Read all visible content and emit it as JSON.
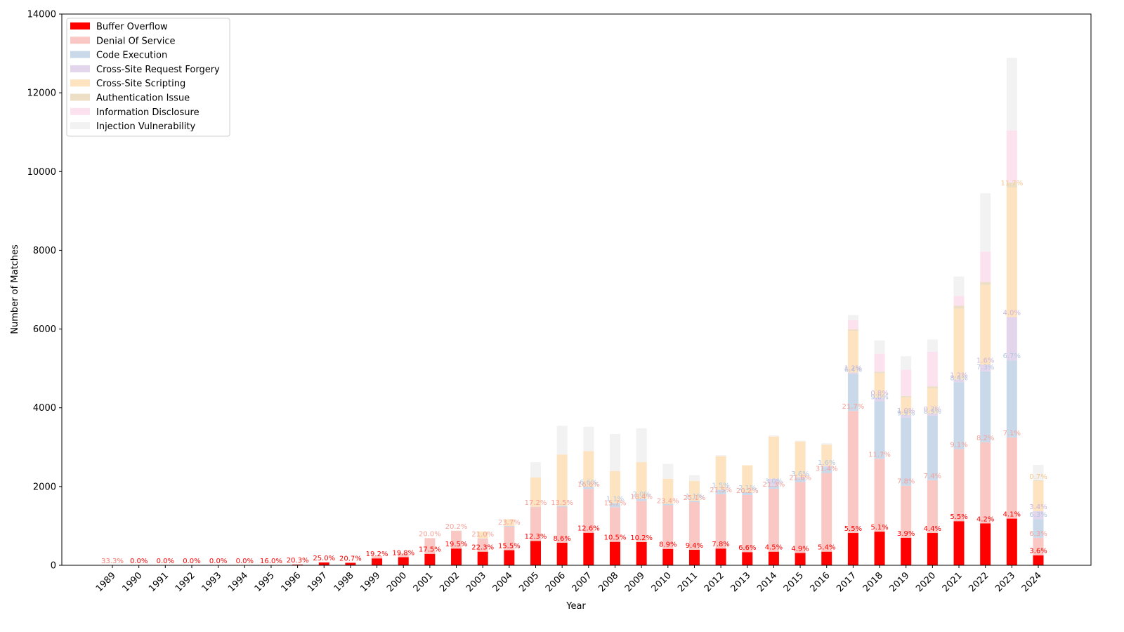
{
  "chart_data": {
    "type": "bar",
    "stacked": true,
    "title": "",
    "xlabel": "Year",
    "ylabel": "Number of Matches",
    "ylim": [
      0,
      14000
    ],
    "yticks": [
      0,
      2000,
      4000,
      6000,
      8000,
      10000,
      12000,
      14000
    ],
    "legend_position": "upper-left",
    "categories": [
      "1989",
      "1990",
      "1991",
      "1992",
      "1993",
      "1994",
      "1995",
      "1996",
      "1997",
      "1998",
      "1999",
      "2000",
      "2001",
      "2002",
      "2003",
      "2004",
      "2005",
      "2006",
      "2007",
      "2008",
      "2009",
      "2010",
      "2011",
      "2012",
      "2013",
      "2014",
      "2015",
      "2016",
      "2017",
      "2018",
      "2019",
      "2020",
      "2021",
      "2022",
      "2023",
      "2024"
    ],
    "series": [
      {
        "name": "Buffer Overflow",
        "color": "#ff0000",
        "label_color": "#ff0000",
        "values": [
          1,
          0,
          0,
          0,
          0,
          0,
          3,
          21,
          75,
          62,
          175,
          205,
          290,
          425,
          345,
          385,
          620,
          575,
          825,
          595,
          590,
          415,
          395,
          425,
          335,
          345,
          315,
          345,
          820,
          855,
          700,
          820,
          1120,
          1065,
          1185,
          255
        ]
      },
      {
        "name": "Denial Of Service",
        "color": "#f9c8c4",
        "label_color": "#f4a29a",
        "values": [
          1,
          0,
          0,
          0,
          0,
          0,
          2,
          5,
          5,
          10,
          55,
          100,
          400,
          450,
          330,
          595,
          860,
          905,
          1115,
          880,
          1045,
          1110,
          1210,
          1380,
          1450,
          1600,
          1800,
          2000,
          3100,
          1850,
          1320,
          1340,
          1830,
          2060,
          2060,
          445
        ]
      },
      {
        "name": "Code Execution",
        "color": "#c9d9e9",
        "label_color": "#b3c8e0",
        "values": [
          0,
          0,
          0,
          0,
          0,
          0,
          0,
          0,
          0,
          0,
          0,
          0,
          0,
          0,
          5,
          20,
          5,
          30,
          55,
          105,
          55,
          35,
          35,
          115,
          70,
          75,
          100,
          150,
          940,
          1460,
          1730,
          1640,
          1700,
          1800,
          1960,
          475
        ]
      },
      {
        "name": "Cross-Site Request Forgery",
        "color": "#e3d5eb",
        "label_color": "#ccb5dc",
        "values": [
          0,
          0,
          0,
          0,
          0,
          0,
          0,
          0,
          0,
          0,
          0,
          0,
          0,
          0,
          0,
          0,
          0,
          0,
          0,
          0,
          0,
          0,
          0,
          0,
          0,
          180,
          30,
          30,
          35,
          100,
          70,
          55,
          70,
          170,
          1100,
          200
        ]
      },
      {
        "name": "Cross-Site Scripting",
        "color": "#fde3c0",
        "label_color": "#f5c68e",
        "values": [
          0,
          0,
          0,
          0,
          0,
          0,
          0,
          0,
          0,
          0,
          0,
          0,
          0,
          0,
          180,
          170,
          745,
          1305,
          905,
          815,
          930,
          635,
          505,
          850,
          685,
          1070,
          900,
          540,
          1060,
          610,
          440,
          640,
          1800,
          2030,
          3290,
          765
        ]
      },
      {
        "name": "Authentication Issue",
        "color": "#ecdfc6",
        "label_color": "#ddc8a2",
        "values": [
          0,
          0,
          0,
          0,
          0,
          0,
          0,
          0,
          0,
          0,
          0,
          0,
          0,
          5,
          0,
          0,
          0,
          0,
          0,
          0,
          0,
          0,
          0,
          0,
          0,
          0,
          0,
          0,
          40,
          40,
          40,
          50,
          70,
          70,
          130,
          20
        ]
      },
      {
        "name": "Information Disclosure",
        "color": "#fce2ef",
        "label_color": "#f7bfd9",
        "values": [
          0,
          0,
          0,
          0,
          0,
          0,
          0,
          0,
          0,
          0,
          0,
          0,
          0,
          0,
          0,
          0,
          0,
          0,
          0,
          0,
          0,
          0,
          0,
          0,
          0,
          0,
          0,
          0,
          230,
          460,
          670,
          880,
          250,
          770,
          1320,
          0
        ]
      },
      {
        "name": "Injection Vulnerability",
        "color": "#f2f2f2",
        "label_color": "#e3e3e3",
        "values": [
          0,
          0,
          0,
          0,
          0,
          0,
          0,
          0,
          0,
          0,
          0,
          0,
          0,
          0,
          0,
          0,
          390,
          730,
          620,
          940,
          860,
          380,
          145,
          30,
          0,
          30,
          20,
          35,
          130,
          335,
          340,
          310,
          495,
          1485,
          1840,
          390
        ]
      }
    ],
    "bar_labels": [
      [
        "33.3%",
        "0.0%",
        "0.0%",
        "0.0%",
        "0.0%",
        "0.0%",
        "16.0%",
        "20.3%",
        "25.0%",
        "20.7%",
        "19.2%",
        "19.8%",
        "17.5%",
        "19.5%",
        "22.3%",
        "15.5%",
        "12.3%",
        "8.6%",
        "12.6%",
        "10.5%",
        "10.2%",
        "8.9%",
        "9.4%",
        "7.8%",
        "6.6%",
        "4.5%",
        "4.9%",
        "5.4%",
        "5.5%",
        "5.1%",
        "3.9%",
        "4.4%",
        "5.5%",
        "4.2%",
        "4.1%",
        "3.6%"
      ],
      [
        "33.3%",
        "",
        "",
        "",
        "",
        "",
        "",
        "",
        "",
        "",
        "",
        "",
        "20.0%",
        "20.2%",
        "21.0%",
        "23.7%",
        "17.2%",
        "13.5%",
        "16.6%",
        "15.7%",
        "18.4%",
        "23.4%",
        "25.1%",
        "21.5%",
        "20.2%",
        "21.3%",
        "21.6%",
        "31.4%",
        "21.7%",
        "11.7%",
        "7.8%",
        "7.4%",
        "9.1%",
        "8.2%",
        "7.1%",
        "6.3%"
      ],
      [
        "",
        "",
        "",
        "",
        "",
        "",
        "",
        "",
        "",
        "",
        "",
        "",
        "",
        "",
        "",
        "",
        "",
        "",
        "6.6%",
        "1.1%",
        "2.0%",
        "",
        "1.1%",
        "1.5%",
        "2.1%",
        "3.0%",
        "3.6%",
        "1.6%",
        "6.4%",
        "9.0%",
        "9.9%",
        "8.9%",
        "8.4%",
        "7.3%",
        "6.7%",
        "6.3%"
      ],
      [
        "",
        "",
        "",
        "",
        "",
        "",
        "",
        "",
        "",
        "",
        "",
        "",
        "",
        "",
        "",
        "",
        "",
        "",
        "",
        "",
        "",
        "",
        "",
        "",
        "",
        "",
        "",
        "",
        "1.2%",
        "0.8%",
        "1.0%",
        "0.7%",
        "1.2%",
        "1.6%",
        "4.0%",
        "3.4%"
      ],
      [
        "",
        "",
        "",
        "",
        "",
        "",
        "",
        "",
        "",
        "",
        "",
        "",
        "",
        "",
        "",
        "",
        "",
        "",
        "",
        "",
        "",
        "",
        "",
        "",
        "",
        "",
        "",
        "",
        "",
        "",
        "",
        "",
        "",
        "",
        "11.7%",
        "0.7%"
      ],
      [
        "",
        "",
        "",
        "",
        "",
        "",
        "",
        "",
        "",
        "",
        "",
        "",
        "",
        "",
        "",
        "",
        "",
        "",
        "",
        "",
        "",
        "",
        "",
        "",
        "",
        "",
        "",
        "",
        "",
        "",
        "",
        "",
        "",
        "",
        "",
        ""
      ],
      [
        "",
        "",
        "",
        "",
        "",
        "",
        "",
        "",
        "",
        "",
        "",
        "",
        "",
        "",
        "",
        "",
        "",
        "",
        "",
        "",
        "",
        "",
        "",
        "",
        "",
        "",
        "",
        "",
        "",
        "",
        "",
        "",
        "",
        "",
        "",
        ""
      ],
      [
        "",
        "",
        "",
        "",
        "",
        "",
        "",
        "",
        "",
        "",
        "",
        "",
        "",
        "",
        "",
        "",
        "",
        "",
        "",
        "",
        "",
        "",
        "",
        "",
        "",
        "",
        "",
        "",
        "",
        "",
        "",
        "",
        "",
        "",
        "",
        ""
      ]
    ]
  }
}
